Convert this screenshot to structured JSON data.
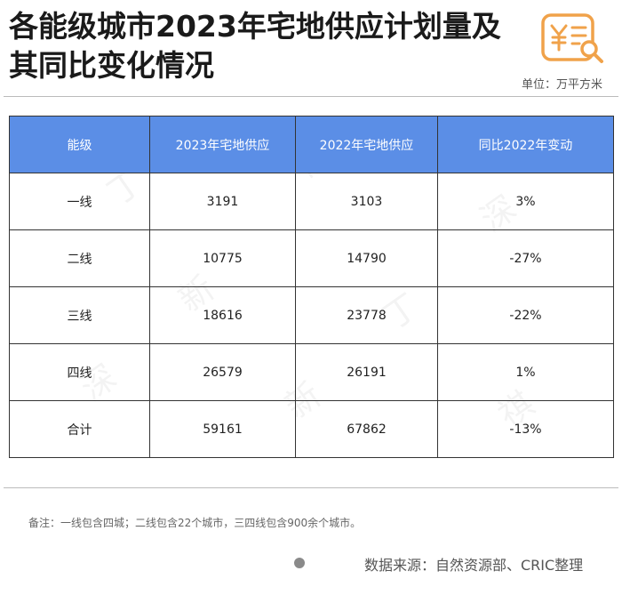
{
  "title": "各能级城市2023年宅地供应计划量及其同比变化情况",
  "unit": "单位：万平方米",
  "logo_icon": "yuan-document-search-icon",
  "table": {
    "headers": [
      "能级",
      "2023年宅地供应",
      "2022年宅地供应",
      "同比2022年变动"
    ],
    "rows": [
      [
        "一线",
        "3191",
        "3103",
        "3%"
      ],
      [
        "二线",
        "10775",
        "14790",
        "-27%"
      ],
      [
        "三线",
        "18616",
        "23778",
        "-22%"
      ],
      [
        "四线",
        "26579",
        "26191",
        "1%"
      ],
      [
        "合计",
        "59161",
        "67862",
        "-13%"
      ]
    ]
  },
  "note": "备注：一线包含四城；二线包含22个城市，三四线包含900余个城市。",
  "source": "数据来源：自然资源部、CRIC整理",
  "colors": {
    "header_bg": "#5b8ee6",
    "logo_accent": "#f0a24a"
  }
}
